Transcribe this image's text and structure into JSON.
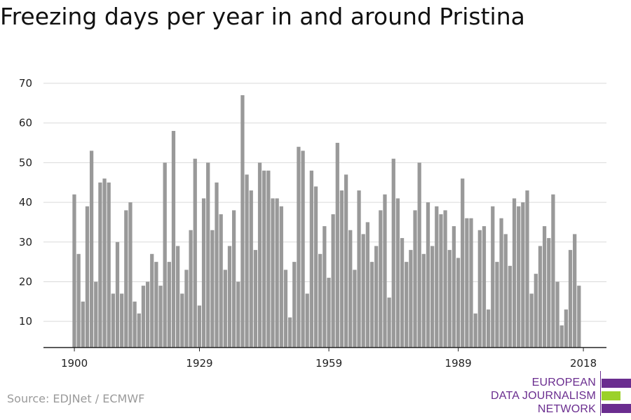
{
  "title": "Freezing days per year in and around Pristina",
  "source": "Source: EDJNet / ECMWF",
  "logo": {
    "line1": "EUROPEAN",
    "line2": "DATA JOURNALISM",
    "line3": "NETWORK",
    "colors": [
      "#6a2d8f",
      "#9bd12a",
      "#6a2d8f"
    ]
  },
  "colors": {
    "bar": "#999999",
    "grid": "#d9d9d9",
    "axis": "#222222"
  },
  "chart_data": {
    "type": "bar",
    "title": "Freezing days per year in and around Pristina",
    "xlabel": "",
    "ylabel": "",
    "x_start": 1900,
    "x_end": 2018,
    "x_ticks": [
      1900,
      1929,
      1959,
      1989,
      2018
    ],
    "y_ticks": [
      10,
      20,
      30,
      40,
      50,
      60,
      70
    ],
    "ylim": [
      3.5,
      70
    ],
    "grid": true,
    "legend": "none",
    "values": [
      42,
      27,
      15,
      39,
      53,
      20,
      45,
      46,
      45,
      17,
      30,
      17,
      38,
      40,
      15,
      12,
      19,
      20,
      27,
      25,
      19,
      50,
      25,
      58,
      29,
      17,
      23,
      33,
      51,
      14,
      41,
      50,
      33,
      45,
      37,
      23,
      29,
      38,
      20,
      67,
      47,
      43,
      28,
      50,
      48,
      48,
      41,
      41,
      39,
      23,
      11,
      25,
      54,
      53,
      17,
      48,
      44,
      27,
      34,
      21,
      37,
      55,
      43,
      47,
      33,
      23,
      43,
      32,
      35,
      25,
      29,
      38,
      42,
      16,
      51,
      41,
      31,
      25,
      28,
      38,
      50,
      27,
      40,
      29,
      39,
      37,
      38,
      28,
      34,
      26,
      46,
      36,
      36,
      12,
      33,
      34,
      13,
      39,
      25,
      36,
      32,
      24,
      41,
      39,
      40,
      43,
      17,
      22,
      29,
      34,
      31,
      42,
      20,
      9,
      13,
      28,
      32,
      19
    ]
  }
}
